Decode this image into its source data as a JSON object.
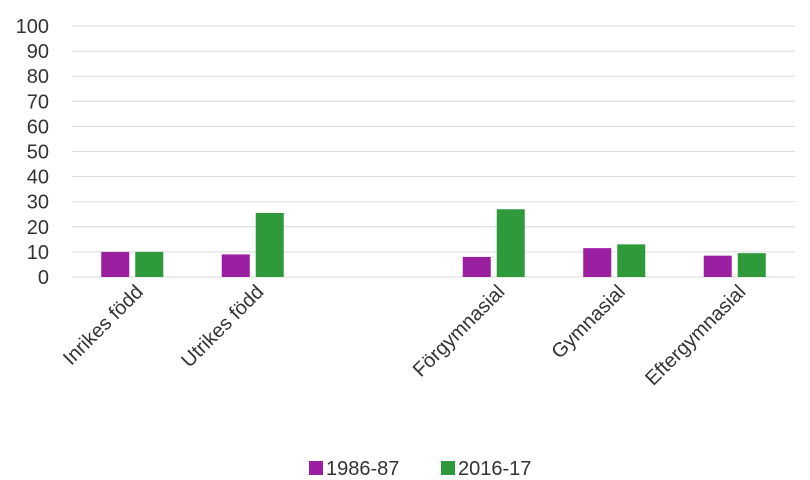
{
  "chart_data": {
    "type": "bar",
    "categories": [
      "Inrikes född",
      "Utrikes född",
      "",
      "Förgymnasial",
      "Gymnasial",
      "Eftergymnasial"
    ],
    "series": [
      {
        "name": "1986-87",
        "color": "#9b1fa1",
        "values": [
          10,
          9,
          null,
          8,
          11.5,
          8.5
        ]
      },
      {
        "name": "2016-17",
        "color": "#2e9a3c",
        "values": [
          10,
          25.5,
          null,
          27,
          13,
          9.5
        ]
      }
    ],
    "ylim": [
      0,
      100
    ],
    "yticks": [
      0,
      10,
      20,
      30,
      40,
      50,
      60,
      70,
      80,
      90,
      100
    ],
    "grid": true,
    "legend": "bottom"
  }
}
